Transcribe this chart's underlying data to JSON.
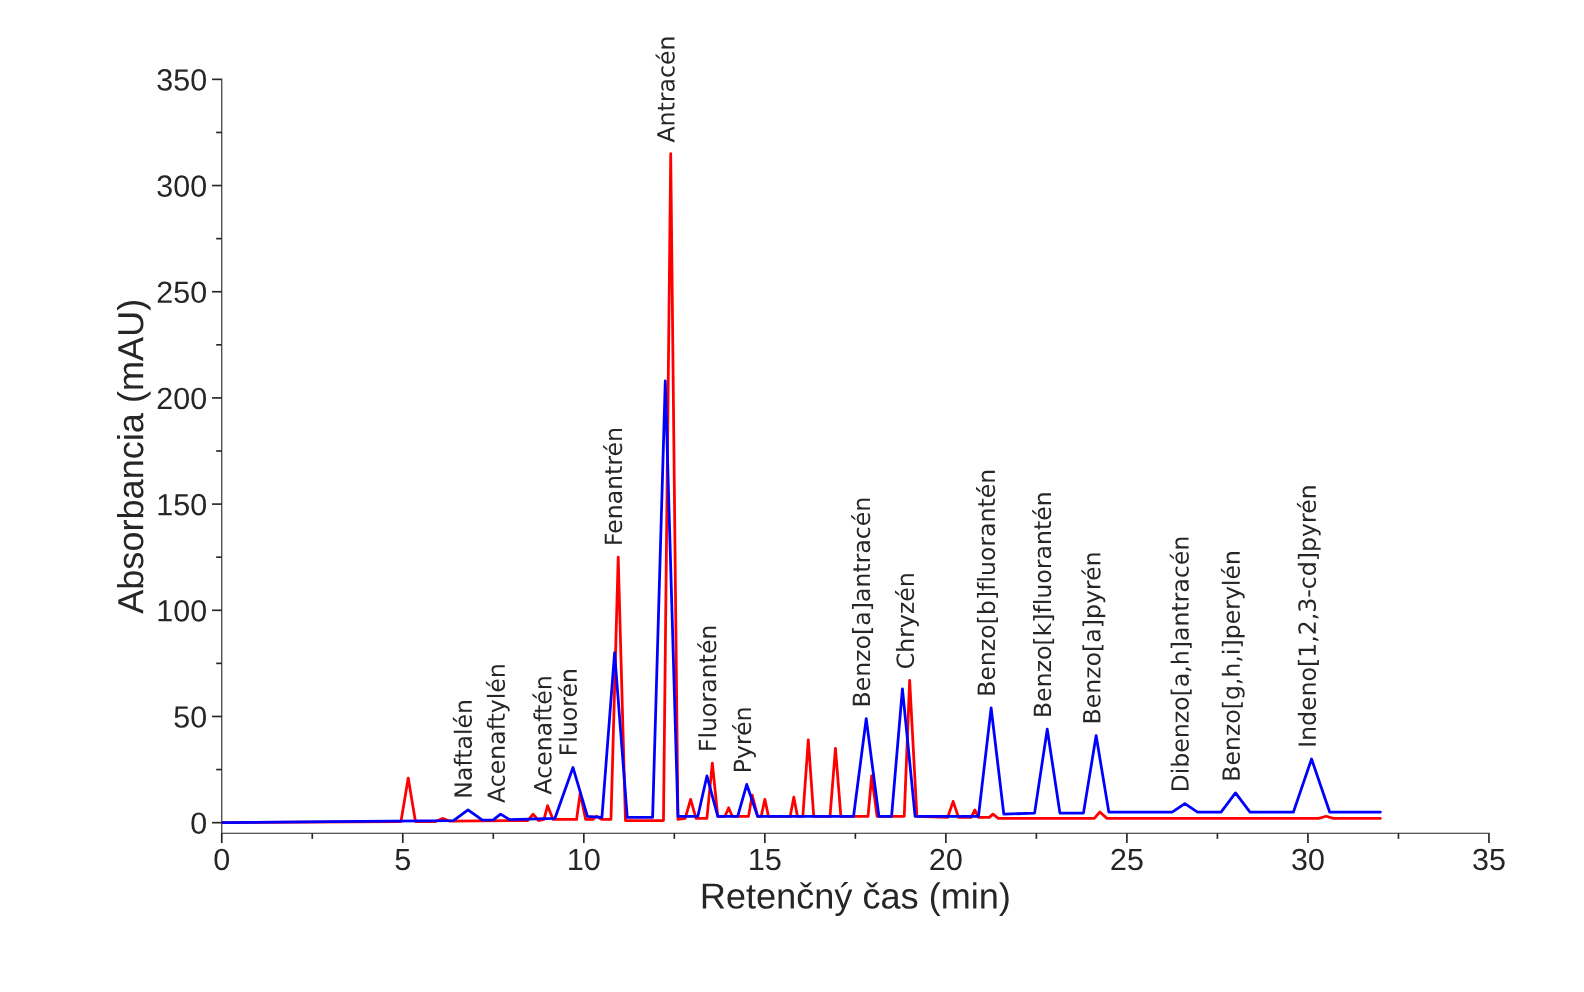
{
  "chart_data": {
    "type": "line",
    "xlabel": "Retenčný čas (min)",
    "ylabel": "Absorbancia (mAU)",
    "xlim": [
      0,
      35
    ],
    "xticks": [
      0,
      5,
      10,
      15,
      20,
      25,
      30,
      35
    ],
    "ylim": [
      -5,
      350
    ],
    "yticks": [
      0,
      50,
      100,
      150,
      200,
      250,
      300,
      350
    ],
    "grid": false,
    "legend": false,
    "marker": "none",
    "line_style": "solid",
    "series": [
      {
        "color": "#ff0000",
        "x": [
          0,
          4.95,
          5.15,
          5.35,
          5.9,
          6.1,
          6.3,
          8.45,
          8.6,
          8.75,
          8.9,
          9.0,
          9.15,
          9.8,
          9.9,
          10.05,
          10.25,
          10.35,
          10.5,
          10.75,
          10.95,
          11.15,
          12.2,
          12.4,
          12.6,
          12.8,
          12.95,
          13.1,
          13.4,
          13.55,
          13.7,
          13.9,
          14.0,
          14.1,
          14.55,
          14.65,
          14.8,
          14.9,
          15.0,
          15.1,
          15.7,
          15.8,
          15.9,
          16.05,
          16.2,
          16.35,
          16.8,
          16.95,
          17.1,
          17.85,
          17.95,
          18.1,
          18.85,
          19.0,
          19.2,
          20.05,
          20.2,
          20.35,
          20.7,
          20.8,
          20.9,
          21.2,
          21.3,
          21.45,
          24.1,
          24.25,
          24.45,
          30.3,
          30.5,
          30.7,
          32
        ],
        "values": [
          0,
          0.5,
          21,
          0.5,
          0.5,
          2,
          0.7,
          1,
          4,
          1,
          1.5,
          8,
          1.5,
          1.5,
          14,
          1.5,
          1.5,
          3,
          1.5,
          1.5,
          125,
          1,
          1,
          315,
          1.5,
          2,
          11,
          2,
          2,
          28,
          3,
          3,
          7,
          3,
          3,
          13,
          3,
          3,
          11,
          3,
          3,
          12,
          3,
          3,
          39,
          3,
          3,
          35,
          3,
          3,
          22,
          3,
          3,
          67,
          3,
          2.5,
          10,
          2.5,
          2.5,
          6,
          2.5,
          2.5,
          4,
          2,
          2,
          5,
          2,
          2,
          3,
          2,
          2
        ]
      },
      {
        "color": "#0000ff",
        "x": [
          0,
          3,
          6.4,
          6.8,
          7.2,
          7.5,
          7.7,
          7.95,
          9.2,
          9.7,
          10.1,
          10.5,
          10.85,
          11.2,
          11.9,
          12.25,
          12.6,
          13.15,
          13.4,
          13.7,
          14.25,
          14.5,
          14.8,
          17.45,
          17.8,
          18.15,
          18.5,
          18.8,
          19.15,
          20.9,
          21.25,
          21.6,
          22.45,
          22.8,
          23.15,
          23.8,
          24.15,
          24.5,
          26.25,
          26.6,
          26.95,
          27.6,
          28.0,
          28.4,
          29.6,
          30.1,
          30.6,
          32
        ],
        "values": [
          0,
          0.5,
          1,
          6,
          1.2,
          1.3,
          4,
          1.4,
          2,
          26,
          3,
          2.5,
          80,
          2.5,
          2.5,
          208,
          3,
          3,
          22,
          3,
          3,
          18,
          3,
          3,
          49,
          3,
          3,
          63,
          3,
          3,
          54,
          4,
          4.5,
          44,
          4.5,
          4.5,
          41,
          5,
          5,
          9,
          5,
          5,
          14,
          5,
          5,
          30,
          5,
          5
        ]
      }
    ],
    "annotations": [
      {
        "text": "Naftalén",
        "x": 6.8,
        "y": 6
      },
      {
        "text": "Acenaftylén",
        "x": 7.7,
        "y": 4
      },
      {
        "text": "Acenaftén",
        "x": 9.0,
        "y": 8
      },
      {
        "text": "Fluorén",
        "x": 9.7,
        "y": 26
      },
      {
        "text": "Fenantrén",
        "x": 10.95,
        "y": 125
      },
      {
        "text": "Antracén",
        "x": 12.4,
        "y": 315
      },
      {
        "text": "Fluorantén",
        "x": 13.55,
        "y": 28
      },
      {
        "text": "Pyrén",
        "x": 14.5,
        "y": 18
      },
      {
        "text": "Benzo[a]antracén",
        "x": 17.8,
        "y": 49
      },
      {
        "text": "Chryzén",
        "x": 19.0,
        "y": 67
      },
      {
        "text": "Benzo[b]fluorantén",
        "x": 21.25,
        "y": 54
      },
      {
        "text": "Benzo[k]fluorantén",
        "x": 22.8,
        "y": 44
      },
      {
        "text": "Benzo[a]pyrén",
        "x": 24.15,
        "y": 41
      },
      {
        "text": "Dibenzo[a,h]antracén",
        "x": 26.6,
        "y": 9
      },
      {
        "text": "Benzo[g,h,i]perylén",
        "x": 28.0,
        "y": 14
      },
      {
        "text": "Indeno[1,2,3-cd]pyrén",
        "x": 30.1,
        "y": 30
      }
    ]
  }
}
